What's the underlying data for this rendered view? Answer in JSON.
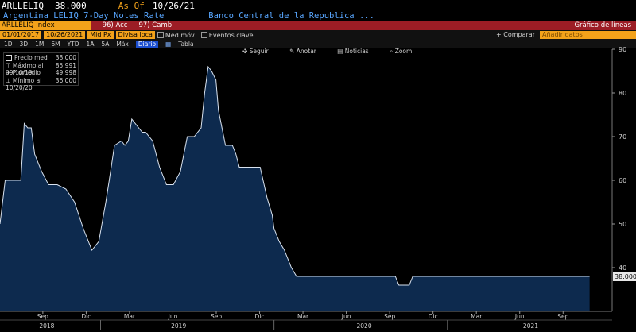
{
  "header": {
    "ticker": "ARLLELIQ",
    "price": "38.000",
    "asof_label": "As Of",
    "date": "10/26/21"
  },
  "subheader": {
    "description": "Argentina LELIQ 7-Day Notes Rate",
    "issuer": "Banco Central de la Republica ..."
  },
  "menubar": {
    "index": "ARLLELIQ Index",
    "acc": "96) Acc",
    "camb": "97) Camb",
    "chart_type": "Gráfico de líneas"
  },
  "controls": {
    "start_date": "01/01/2017",
    "end_date": "10/26/2021",
    "field": "Mid Px",
    "currency": "Divisa loca",
    "mov_label": "Med móv",
    "events_label": "Eventos clave",
    "compare_label": "+ Comparar",
    "add_data_placeholder": "Añadir datos"
  },
  "periods": [
    "1D",
    "3D",
    "1M",
    "6M",
    "YTD",
    "1A",
    "5A",
    "Máx"
  ],
  "frequency": "Diario",
  "table_label": "Tabla",
  "tools": [
    "Seguir",
    "Anotar",
    "Noticias",
    "Zoom"
  ],
  "legend": [
    {
      "label": "Precio med",
      "value": "38.000"
    },
    {
      "label": "Máximo al 09/10/19",
      "value": "85.991"
    },
    {
      "label": "Promedio",
      "value": "49.998"
    },
    {
      "label": "Mínimo al 10/20/20",
      "value": "36.000"
    }
  ],
  "colors": {
    "line": "#d8e2ef",
    "fill": "#0d2a4e",
    "accent": "#f3a21a",
    "bar": "#9c1d25"
  },
  "chart_data": {
    "type": "area",
    "ylim": [
      30,
      90
    ],
    "yticks": [
      40,
      50,
      60,
      70,
      80,
      90
    ],
    "last_value_label": "38.000",
    "month_ticks": [
      {
        "label": "Sep",
        "t": 2018.667
      },
      {
        "label": "Dic",
        "t": 2018.917
      },
      {
        "label": "Mar",
        "t": 2019.167
      },
      {
        "label": "Jun",
        "t": 2019.417
      },
      {
        "label": "Sep",
        "t": 2019.667
      },
      {
        "label": "Dic",
        "t": 2019.917
      },
      {
        "label": "Mar",
        "t": 2020.167
      },
      {
        "label": "Jun",
        "t": 2020.417
      },
      {
        "label": "Sep",
        "t": 2020.667
      },
      {
        "label": "Dic",
        "t": 2020.917
      },
      {
        "label": "Mar",
        "t": 2021.167
      },
      {
        "label": "Jun",
        "t": 2021.417
      },
      {
        "label": "Sep",
        "t": 2021.667
      }
    ],
    "year_ticks": [
      {
        "label": "2018",
        "t": 2018.69
      },
      {
        "label": "2019",
        "t": 2019.45
      },
      {
        "label": "2020",
        "t": 2020.52
      },
      {
        "label": "2021",
        "t": 2021.48
      }
    ],
    "x": [
      2018.42,
      2018.45,
      2018.46,
      2018.5,
      2018.54,
      2018.56,
      2018.58,
      2018.6,
      2018.62,
      2018.66,
      2018.7,
      2018.73,
      2018.75,
      2018.8,
      2018.85,
      2018.9,
      2018.95,
      2018.99,
      2019.03,
      2019.05,
      2019.08,
      2019.12,
      2019.14,
      2019.16,
      2019.18,
      2019.22,
      2019.24,
      2019.26,
      2019.3,
      2019.34,
      2019.38,
      2019.42,
      2019.46,
      2019.5,
      2019.54,
      2019.58,
      2019.6,
      2019.62,
      2019.64,
      2019.665,
      2019.68,
      2019.72,
      2019.76,
      2019.78,
      2019.8,
      2019.84,
      2019.88,
      2019.92,
      2019.96,
      2019.99,
      2020.0,
      2020.03,
      2020.06,
      2020.1,
      2020.13,
      2020.16,
      2020.2,
      2020.25,
      2020.4,
      2020.6,
      2020.7,
      2020.72,
      2020.78,
      2020.8,
      2021.0,
      2021.3,
      2021.5,
      2021.7,
      2021.82
    ],
    "y": [
      50,
      60,
      60,
      60,
      60,
      73,
      72,
      72,
      66,
      62,
      59,
      59,
      59,
      58,
      55,
      49,
      44,
      46,
      55,
      60,
      68,
      69,
      68,
      69,
      74,
      72,
      71,
      71,
      69,
      63,
      59,
      59,
      62,
      70,
      70,
      72,
      80,
      86,
      85,
      83,
      76,
      68,
      68,
      66,
      63,
      63,
      63,
      63,
      56,
      52,
      49,
      46,
      44,
      40,
      38,
      38,
      38,
      38,
      38,
      38,
      38,
      36,
      36,
      38,
      38,
      38,
      38,
      38,
      38
    ]
  }
}
